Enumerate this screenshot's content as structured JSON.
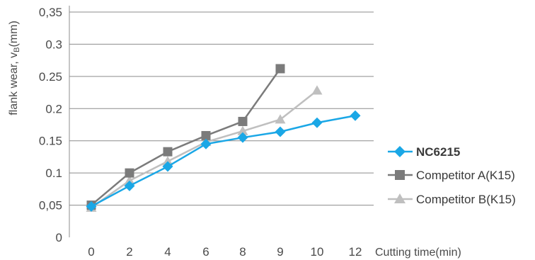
{
  "chart_data": {
    "type": "line",
    "xlabel": "Cutting time(min)",
    "ylabel": "flank wear, vB(mm)",
    "ylabel_main": "flank wear, v",
    "ylabel_sub": "B",
    "ylabel_unit": "(mm)",
    "ylim": [
      0,
      0.35
    ],
    "y_ticks": [
      0,
      0.05,
      0.1,
      0.15,
      0.2,
      0.25,
      0.3,
      0.35
    ],
    "y_tick_labels": [
      "0",
      "0,05",
      "0.1",
      "0.15",
      "0.2",
      "0.25",
      "0.3",
      "0,35"
    ],
    "categories": [
      "0",
      "2",
      "4",
      "6",
      "8",
      "9",
      "10",
      "12"
    ],
    "grid": true,
    "legend_position": "right",
    "series": [
      {
        "name": "NC6215",
        "color": "#1aa7e6",
        "label_color": "#e8192c",
        "marker": "diamond",
        "values": [
          0.048,
          0.08,
          0.11,
          0.145,
          0.155,
          0.164,
          0.178,
          0.189
        ]
      },
      {
        "name": "Competitor A(K15)",
        "color": "#7b7b7b",
        "label_color": "#3a3a3a",
        "marker": "square",
        "values": [
          0.05,
          0.1,
          0.133,
          0.158,
          0.18,
          0.262,
          null,
          null
        ]
      },
      {
        "name": "Competitor B(K15)",
        "color": "#bfbfbf",
        "label_color": "#3a3a3a",
        "marker": "triangle",
        "values": [
          0.046,
          0.088,
          0.118,
          0.148,
          0.165,
          0.183,
          0.228,
          null
        ]
      }
    ]
  }
}
